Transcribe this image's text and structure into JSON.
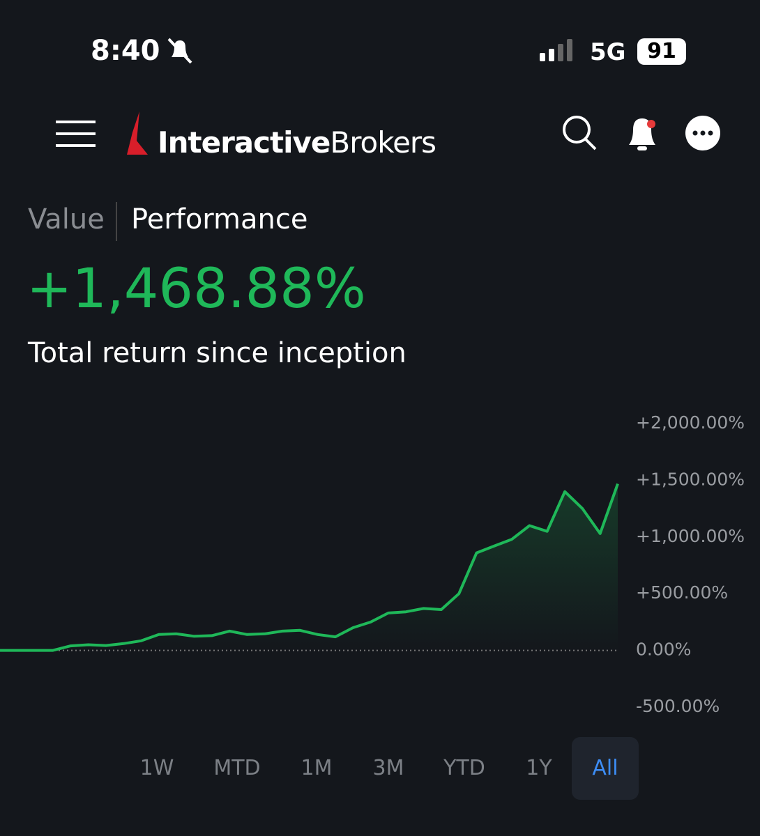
{
  "status_bar": {
    "time": "8:40",
    "network": "5G",
    "battery": "91"
  },
  "header": {
    "brand_bold": "Interactive",
    "brand_regular": "Brokers"
  },
  "tabs": [
    "Value",
    "Performance"
  ],
  "summary": {
    "return": "+1,468.88%",
    "caption": "Total return since inception"
  },
  "chart_data": {
    "type": "line",
    "color": "#1fb859",
    "values": [
      0,
      0,
      0,
      0,
      40,
      50,
      43,
      60,
      85,
      140,
      146,
      125,
      130,
      170,
      140,
      146,
      170,
      177,
      140,
      120,
      200,
      250,
      330,
      340,
      370,
      360,
      500,
      860,
      920,
      980,
      1100,
      1050,
      1400,
      1250,
      1030,
      1469
    ],
    "ylim": [
      -500,
      2000
    ],
    "yticks": [
      {
        "value": 2000,
        "label": "+2,000.00%"
      },
      {
        "value": 1500,
        "label": "+1,500.00%"
      },
      {
        "value": 1000,
        "label": "+1,000.00%"
      },
      {
        "value": 500,
        "label": "+500.00%"
      },
      {
        "value": 0,
        "label": "0.00%"
      },
      {
        "value": -500,
        "label": "-500.00%"
      }
    ]
  },
  "ranges": [
    "1W",
    "MTD",
    "1M",
    "3M",
    "YTD",
    "1Y",
    "All"
  ],
  "selected_range": "All"
}
